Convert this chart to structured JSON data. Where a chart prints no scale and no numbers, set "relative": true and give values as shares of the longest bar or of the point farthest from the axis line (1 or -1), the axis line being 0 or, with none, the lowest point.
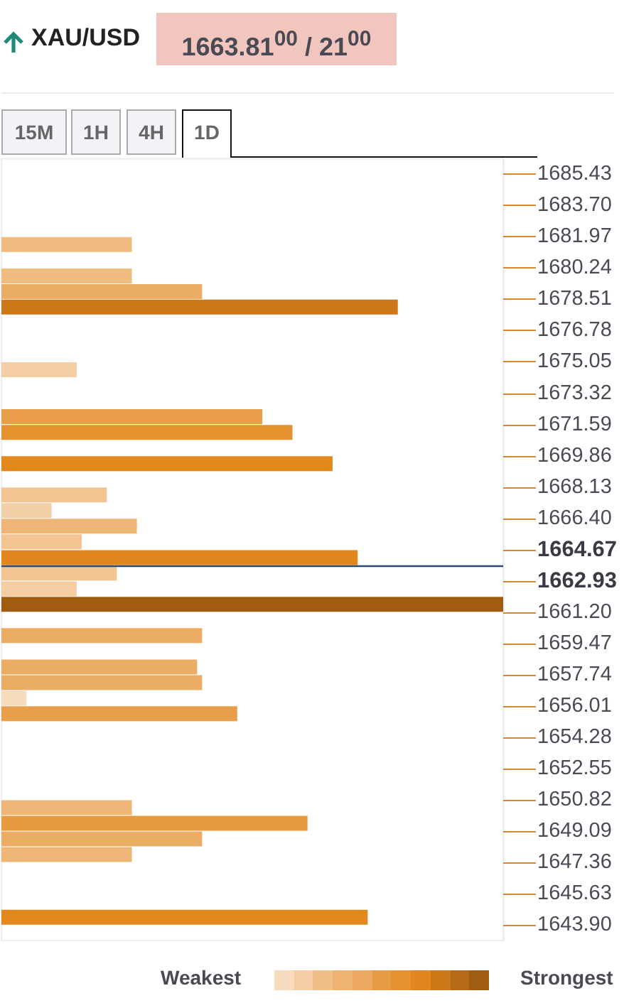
{
  "chart_data": {
    "type": "bar",
    "orientation": "horizontal",
    "relative": true,
    "title": "XAU/USD",
    "subtitle": "1663.81$^{00}$ / 21$^{00}$",
    "annotations": [
      "15M",
      "1H",
      "4H",
      "1D",
      "Weakest",
      "Strongest"
    ],
    "x": [
      1681.54,
      1679.8,
      1678.94,
      1678.08,
      1674.62,
      1672.02,
      1671.15,
      1669.42,
      1667.69,
      1666.83,
      1665.96,
      1665.1,
      1664.23,
      1663.37,
      1662.5,
      1661.64,
      1659.91,
      1658.18,
      1657.31,
      1656.45,
      1655.59,
      1650.4,
      1649.53,
      1648.67,
      1647.8,
      1644.34
    ],
    "values": [
      0.26,
      0.26,
      0.4,
      0.79,
      0.15,
      0.52,
      0.58,
      0.66,
      0.21,
      0.1,
      0.27,
      0.16,
      0.71,
      0.23,
      0.15,
      1,
      0.4,
      0.39,
      0.4,
      0.05,
      0.47,
      0.26,
      0.61,
      0.4,
      0.26,
      0.73
    ],
    "colors": [
      "#f0bc7f",
      "#f0bc7f",
      "#ebac64",
      "#cd7818",
      "#f4cfa5",
      "#e89e4a",
      "#e6932f",
      "#e2891e",
      "#f2c491",
      "#f4d0a8",
      "#efb777",
      "#f2c491",
      "#e2871d",
      "#f2c491",
      "#f4cea2",
      "#a05d12",
      "#ebac64",
      "#ebac64",
      "#ebac64",
      "#f7dbbd",
      "#e89f4c",
      "#efb777",
      "#e89a3e",
      "#ebac64",
      "#efb777",
      "#e2891e"
    ],
    "ylim": [
      1643.05,
      1686.29
    ],
    "yticks": [
      {
        "value": 1643.9,
        "label": "1643.90"
      },
      1645.63,
      1647.36,
      1649.09,
      1650.82,
      1652.55,
      1654.28,
      1656.01,
      1657.74,
      1659.47,
      {
        "value": 1661.2,
        "label": "1661.20"
      },
      1662.93,
      1664.67,
      {
        "value": 1666.4,
        "label": "1666.40"
      },
      1668.13,
      1669.86,
      1671.59,
      1673.32,
      1675.05,
      1676.78,
      1678.51,
      1680.24,
      1681.97,
      {
        "value": 1683.7,
        "label": "1683.70"
      },
      1685.43
    ],
    "ref_lines": [
      {
        "axis": "y",
        "value": 1663.81,
        "color": "#2c4a6e"
      }
    ],
    "grid": false
  }
}
